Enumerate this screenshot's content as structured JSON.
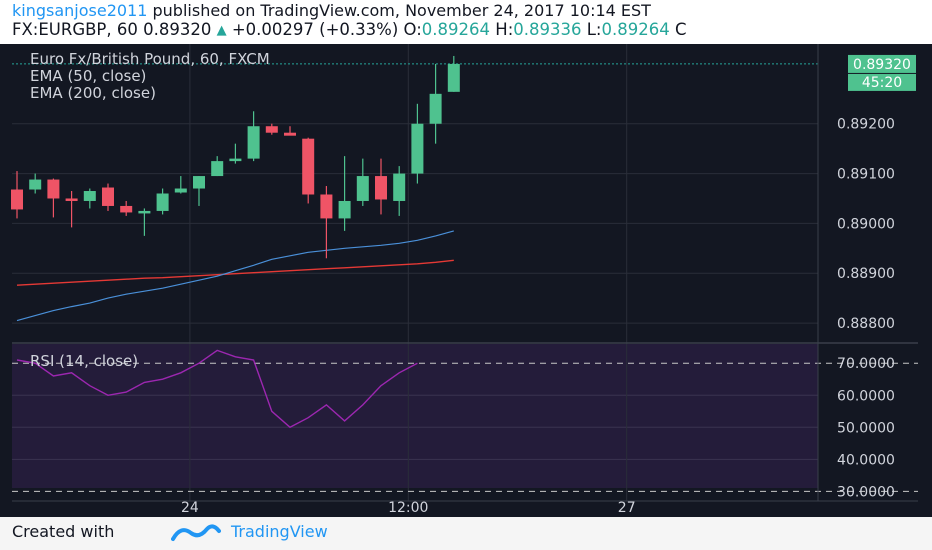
{
  "header": {
    "user": "kingsanjose2011",
    "published": " published on TradingView.com, November 24, 2017 10:14 EST",
    "symbol": "FX:EURGBP, 60",
    "price": "0.89320",
    "change": "+0.00297 (+0.33%)",
    "o_label": "O:",
    "o_value": "0.89264",
    "h_label": "H:",
    "h_value": "0.89336",
    "l_label": "L:",
    "l_value": "0.89264",
    "c_label": "C"
  },
  "chart_data": [
    {
      "type": "candlestick",
      "title": "Euro Fx/British Pound, 60, FXCM",
      "legend": [
        "EMA (50, close)",
        "EMA (200, close)"
      ],
      "ylim": [
        0.8876,
        0.8936
      ],
      "yticks": [
        "0.89320",
        "0.89200",
        "0.89100",
        "0.89000",
        "0.88900",
        "0.88800"
      ],
      "ytick_values": [
        0.8932,
        0.892,
        0.891,
        0.89,
        0.889,
        0.888
      ],
      "last_price_label": "0.89320",
      "countdown_label": "45:20",
      "xticks": [
        {
          "label": "24",
          "index": 9.5
        },
        {
          "label": "12:00",
          "index": 21.5
        },
        {
          "label": "27",
          "index": 33.5
        }
      ],
      "candles": [
        {
          "o": 0.89068,
          "h": 0.89105,
          "l": 0.8901,
          "c": 0.89028
        },
        {
          "o": 0.89068,
          "h": 0.891,
          "l": 0.8906,
          "c": 0.89088
        },
        {
          "o": 0.89088,
          "h": 0.8909,
          "l": 0.89012,
          "c": 0.8905
        },
        {
          "o": 0.8905,
          "h": 0.89065,
          "l": 0.88992,
          "c": 0.89045
        },
        {
          "o": 0.89045,
          "h": 0.8907,
          "l": 0.8903,
          "c": 0.89065
        },
        {
          "o": 0.89072,
          "h": 0.8908,
          "l": 0.89025,
          "c": 0.89035
        },
        {
          "o": 0.89035,
          "h": 0.89045,
          "l": 0.89015,
          "c": 0.89022
        },
        {
          "o": 0.8902,
          "h": 0.8903,
          "l": 0.88975,
          "c": 0.89025
        },
        {
          "o": 0.89025,
          "h": 0.8907,
          "l": 0.89018,
          "c": 0.8906
        },
        {
          "o": 0.89062,
          "h": 0.89095,
          "l": 0.8906,
          "c": 0.8907
        },
        {
          "o": 0.8907,
          "h": 0.89095,
          "l": 0.89035,
          "c": 0.89095
        },
        {
          "o": 0.89095,
          "h": 0.89135,
          "l": 0.89095,
          "c": 0.89125
        },
        {
          "o": 0.89125,
          "h": 0.8916,
          "l": 0.8912,
          "c": 0.8913
        },
        {
          "o": 0.8913,
          "h": 0.89225,
          "l": 0.89125,
          "c": 0.89195
        },
        {
          "o": 0.89195,
          "h": 0.892,
          "l": 0.89178,
          "c": 0.89182
        },
        {
          "o": 0.89182,
          "h": 0.89195,
          "l": 0.8918,
          "c": 0.89176
        },
        {
          "o": 0.8917,
          "h": 0.89172,
          "l": 0.8904,
          "c": 0.89058
        },
        {
          "o": 0.89058,
          "h": 0.89075,
          "l": 0.8893,
          "c": 0.8901
        },
        {
          "o": 0.8901,
          "h": 0.89135,
          "l": 0.88985,
          "c": 0.89045
        },
        {
          "o": 0.89045,
          "h": 0.8913,
          "l": 0.89035,
          "c": 0.89095
        },
        {
          "o": 0.89095,
          "h": 0.8913,
          "l": 0.89018,
          "c": 0.89048
        },
        {
          "o": 0.89045,
          "h": 0.89115,
          "l": 0.89015,
          "c": 0.891
        },
        {
          "o": 0.891,
          "h": 0.8924,
          "l": 0.8908,
          "c": 0.892
        },
        {
          "o": 0.892,
          "h": 0.8932,
          "l": 0.8916,
          "c": 0.8926
        },
        {
          "o": 0.89264,
          "h": 0.89336,
          "l": 0.89264,
          "c": 0.8932
        }
      ],
      "ema50": [
        0.88805,
        0.88815,
        0.88825,
        0.88833,
        0.8884,
        0.8885,
        0.88858,
        0.88864,
        0.8887,
        0.88878,
        0.88886,
        0.88894,
        0.88905,
        0.88916,
        0.88928,
        0.88935,
        0.88942,
        0.88946,
        0.8895,
        0.88953,
        0.88956,
        0.8896,
        0.88966,
        0.88975,
        0.88985
      ],
      "ema200": [
        0.88876,
        0.88878,
        0.8888,
        0.88882,
        0.88884,
        0.88886,
        0.88888,
        0.8889,
        0.88891,
        0.88893,
        0.88895,
        0.88897,
        0.88899,
        0.88901,
        0.88903,
        0.88905,
        0.88907,
        0.88909,
        0.88911,
        0.88913,
        0.88915,
        0.88917,
        0.88919,
        0.88922,
        0.88926
      ]
    },
    {
      "type": "line",
      "title": "RSI (14, close)",
      "ylim": [
        27,
        76
      ],
      "yticks": [
        "70.0000",
        "60.0000",
        "50.0000",
        "40.0000",
        "30.0000"
      ],
      "ytick_values": [
        70,
        60,
        50,
        40,
        30
      ],
      "levels": [
        70,
        30
      ],
      "values": [
        71,
        70,
        66,
        67,
        63,
        60,
        61,
        64,
        65,
        67,
        70,
        74,
        72,
        71,
        55,
        50,
        53,
        57,
        52,
        57,
        63,
        67,
        70
      ]
    }
  ],
  "footer": {
    "created_with": "Created with",
    "brand": "TradingView"
  }
}
